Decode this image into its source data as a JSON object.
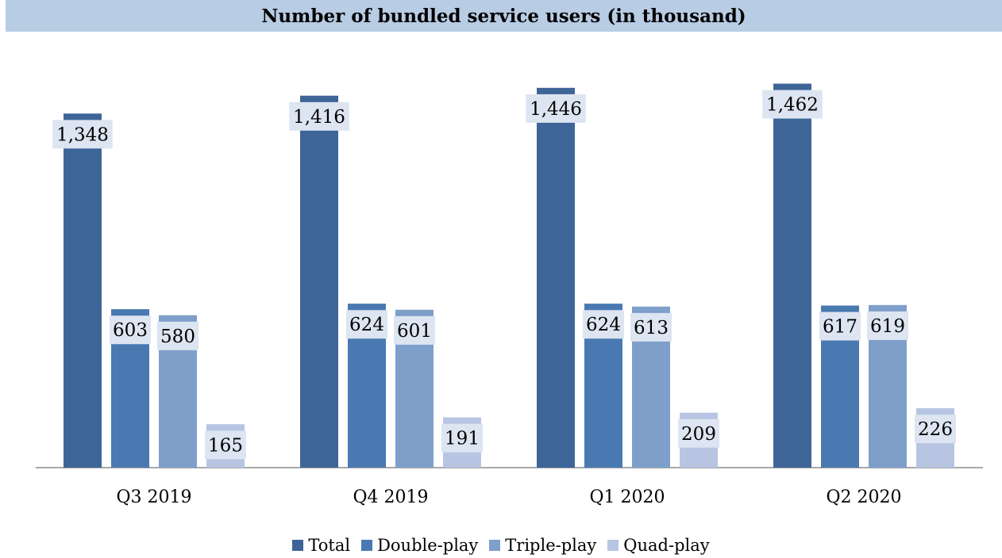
{
  "chart_data": {
    "type": "bar",
    "title": "Number of bundled service users (in thousand)",
    "categories": [
      "Q3 2019",
      "Q4 2019",
      "Q1 2020",
      "Q2 2020"
    ],
    "series": [
      {
        "name": "Total",
        "values": [
          1348,
          1416,
          1446,
          1462
        ],
        "labels": [
          "1,348",
          "1,416",
          "1,446",
          "1,462"
        ],
        "color": "#3e6597"
      },
      {
        "name": "Double-play",
        "values": [
          603,
          624,
          624,
          617
        ],
        "labels": [
          "603",
          "624",
          "624",
          "617"
        ],
        "color": "#4a79b2"
      },
      {
        "name": "Triple-play",
        "values": [
          580,
          601,
          613,
          619
        ],
        "labels": [
          "580",
          "601",
          "613",
          "619"
        ],
        "color": "#7f9fcb"
      },
      {
        "name": "Quad-play",
        "values": [
          165,
          191,
          209,
          226
        ],
        "labels": [
          "165",
          "191",
          "209",
          "226"
        ],
        "color": "#b7c5e2"
      }
    ],
    "xlabel": "",
    "ylabel": "",
    "ylim": [
      0,
      1500
    ],
    "grid": false,
    "legend": "bottom"
  },
  "theme": {
    "title_band": "#b8cce4",
    "label_box": "#dce5f1",
    "axis": "#8c8c8c"
  }
}
